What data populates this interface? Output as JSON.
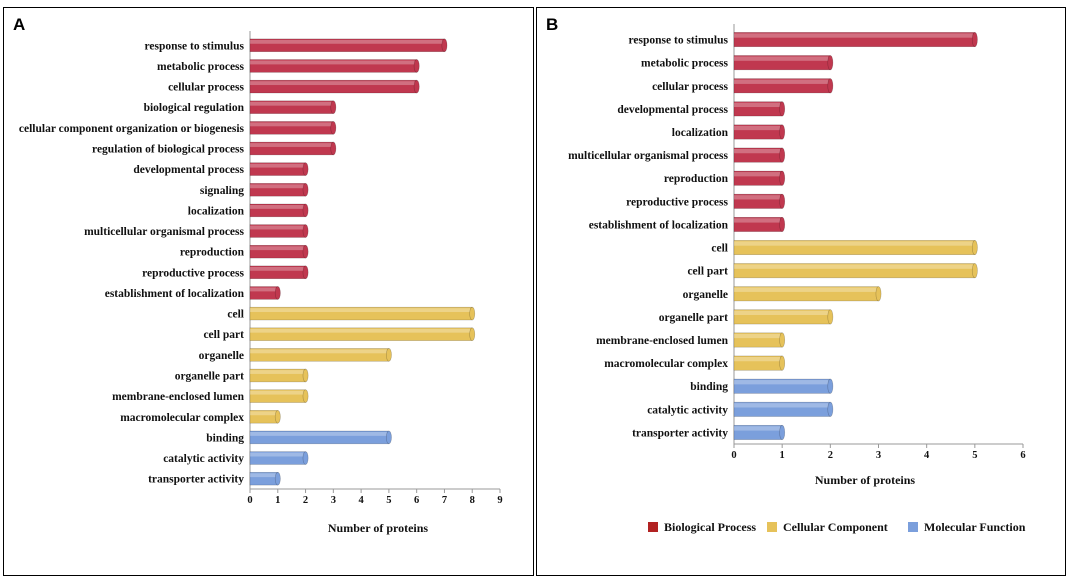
{
  "colors": {
    "bio": "#c0384f",
    "bio_legend": "#b22222",
    "cell": "#e6c25a",
    "mol": "#7b9fdc"
  },
  "legend": [
    "Biological Process",
    "Cellular Component",
    "Molecular Function"
  ],
  "chart_data": [
    {
      "type": "bar",
      "panel": "A",
      "orientation": "horizontal",
      "xlabel": "Number of proteins",
      "xlim": [
        0,
        9
      ],
      "xticks": [
        "0",
        "1",
        "2",
        "3",
        "4",
        "5",
        "6",
        "7",
        "8",
        "9"
      ],
      "categories": [
        "response to stimulus",
        "metabolic process",
        "cellular process",
        "biological regulation",
        "cellular component organization or biogenesis",
        "regulation of biological process",
        "developmental process",
        "signaling",
        "localization",
        "multicellular organismal process",
        "reproduction",
        "reproductive process",
        "establishment of localization",
        "cell",
        "cell part",
        "organelle",
        "organelle part",
        "membrane-enclosed lumen",
        "macromolecular complex",
        "binding",
        "catalytic activity",
        "transporter activity"
      ],
      "values": [
        7,
        6,
        6,
        3,
        3,
        3,
        2,
        2,
        2,
        2,
        2,
        2,
        1,
        8,
        8,
        5,
        2,
        2,
        1,
        5,
        2,
        1
      ],
      "groups": [
        "bio",
        "bio",
        "bio",
        "bio",
        "bio",
        "bio",
        "bio",
        "bio",
        "bio",
        "bio",
        "bio",
        "bio",
        "bio",
        "cell",
        "cell",
        "cell",
        "cell",
        "cell",
        "cell",
        "mol",
        "mol",
        "mol"
      ]
    },
    {
      "type": "bar",
      "panel": "B",
      "orientation": "horizontal",
      "xlabel": "Number of proteins",
      "xlim": [
        0,
        6
      ],
      "xticks": [
        "0",
        "1",
        "2",
        "3",
        "4",
        "5",
        "6"
      ],
      "categories": [
        "response to stimulus",
        "metabolic process",
        "cellular process",
        "developmental process",
        "localization",
        "multicellular organismal process",
        "reproduction",
        "reproductive process",
        "establishment of localization",
        "cell",
        "cell part",
        "organelle",
        "organelle part",
        "membrane-enclosed lumen",
        "macromolecular complex",
        "binding",
        "catalytic activity",
        "transporter activity"
      ],
      "values": [
        5,
        2,
        2,
        1,
        1,
        1,
        1,
        1,
        1,
        5,
        5,
        3,
        2,
        1,
        1,
        2,
        2,
        1
      ],
      "groups": [
        "bio",
        "bio",
        "bio",
        "bio",
        "bio",
        "bio",
        "bio",
        "bio",
        "bio",
        "cell",
        "cell",
        "cell",
        "cell",
        "cell",
        "cell",
        "mol",
        "mol",
        "mol"
      ]
    }
  ]
}
